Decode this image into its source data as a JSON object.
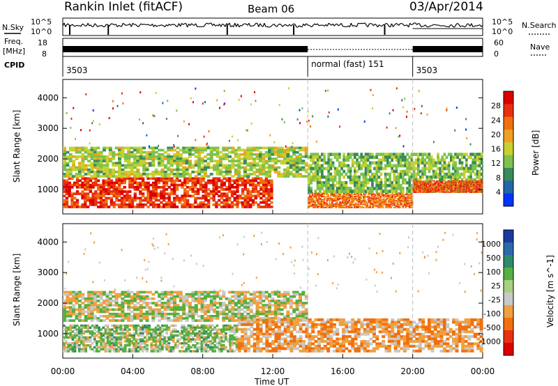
{
  "header": {
    "station": "Rankin Inlet (fitACF)",
    "beam": "Beam 06",
    "date": "03/Apr/2014"
  },
  "status_panels": {
    "nsky_label": "N.Sky",
    "nsky_ticks": [
      "10^5",
      "10^0"
    ],
    "nsearch_label": "N.Search",
    "freq_label": "Freq.",
    "freq_unit": "[MHz]",
    "freq_ticks": [
      "18",
      "8"
    ],
    "nave_label": "Nave",
    "nave_ticks": [
      "60",
      "0"
    ],
    "cpid_label": "CPID",
    "cpid_segments": [
      {
        "label": "3503",
        "start_hour": 0,
        "end_hour": 14.0
      },
      {
        "label": "normal (fast) 151",
        "start_hour": 14.0,
        "end_hour": 20.0
      },
      {
        "label": "3503",
        "start_hour": 20.0,
        "end_hour": 24.0
      }
    ]
  },
  "chart_data": [
    {
      "type": "heatmap",
      "name": "power",
      "ylabel": "Slant Range [km]",
      "colorbar_label": "Power [dB]",
      "colorbar_ticks": [
        "28",
        "24",
        "20",
        "16",
        "12",
        "8",
        "4"
      ],
      "colors": [
        "#0033ff",
        "#2266aa",
        "#3a8a5a",
        "#7cc24c",
        "#c8d030",
        "#f0a020",
        "#f07010",
        "#e83010",
        "#dd0000"
      ],
      "ylim": [
        200,
        4600
      ],
      "yticks": [
        1000,
        2000,
        3000,
        4000
      ],
      "xlim": [
        0,
        24
      ],
      "regions": [
        {
          "start_hour": 0,
          "end_hour": 12,
          "range_km": [
            400,
            1400
          ],
          "power_db": 28
        },
        {
          "start_hour": 0,
          "end_hour": 14,
          "range_km": [
            1400,
            2400
          ],
          "power_db": 14
        },
        {
          "start_hour": 14,
          "end_hour": 20,
          "range_km": [
            400,
            900
          ],
          "power_db": 24
        },
        {
          "start_hour": 14,
          "end_hour": 24,
          "range_km": [
            900,
            2200
          ],
          "power_db": 12
        },
        {
          "start_hour": 20,
          "end_hour": 24,
          "range_km": [
            900,
            1300
          ],
          "power_db": 26
        }
      ]
    },
    {
      "type": "heatmap",
      "name": "velocity",
      "xlabel": "Time UT",
      "ylabel": "Slant Range [km]",
      "colorbar_label": "Velocity [m s^-1]",
      "colorbar_ticks": [
        "1000",
        "500",
        "100",
        "25",
        "-25",
        "-100",
        "-500",
        "-1000"
      ],
      "colors": [
        "#1a3aa0",
        "#2a6aa8",
        "#2e8a6a",
        "#55b040",
        "#a8d080",
        "#c8c8c8",
        "#f0a040",
        "#f07010",
        "#e83010",
        "#dd0000"
      ],
      "ylim": [
        200,
        4600
      ],
      "yticks": [
        1000,
        2000,
        3000,
        4000
      ],
      "xlim": [
        0,
        24
      ],
      "xticks": [
        "00:00",
        "04:00",
        "08:00",
        "12:00",
        "16:00",
        "20:00",
        "00:00"
      ],
      "regions": [
        {
          "start_hour": 0,
          "end_hour": 10,
          "range_km": [
            400,
            1300
          ],
          "velocity": 100
        },
        {
          "start_hour": 0,
          "end_hour": 14,
          "range_km": [
            1400,
            2400
          ],
          "velocity": 0
        },
        {
          "start_hour": 10,
          "end_hour": 24,
          "range_km": [
            400,
            1500
          ],
          "velocity": -200
        }
      ]
    }
  ]
}
